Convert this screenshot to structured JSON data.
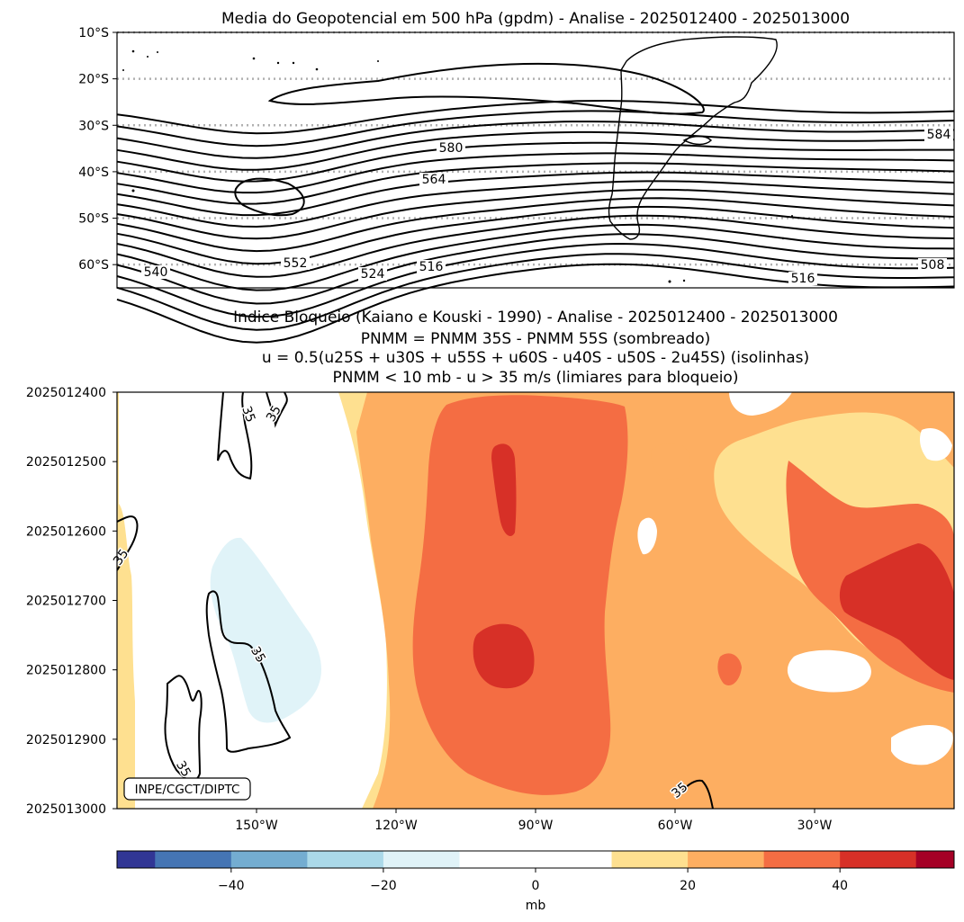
{
  "chart_data": [
    {
      "type": "contour",
      "title": "Media do Geopotencial em 500 hPa (gpdm) - Analise - 2025012400 - 2025013000",
      "y_tick_labels": [
        "10°S",
        "20°S",
        "30°S",
        "40°S",
        "50°S",
        "60°S"
      ],
      "y_ticks": [
        -10,
        -20,
        -30,
        -40,
        -50,
        -60
      ],
      "ylim": [
        -65,
        -10
      ],
      "xlim": [
        -180,
        0
      ],
      "contour_labels": [
        "580",
        "584",
        "564",
        "552",
        "540",
        "524",
        "516",
        "516",
        "508"
      ],
      "contour_values": [
        508,
        516,
        524,
        532,
        540,
        548,
        552,
        556,
        560,
        564,
        568,
        572,
        576,
        580,
        584,
        588
      ],
      "grid": "dotted latitude lines"
    },
    {
      "type": "heatmap",
      "title_lines": [
        "Indice Bloqueio (Kaiano e Kouski - 1990) - Analise - 2025012400 - 2025013000",
        "PNMM = PNMM 35S - PNMM 55S (sombreado)",
        "u = 0.5(u25S + u30S + u55S + u60S - u40S - u50S - 2u45S) (isolinhas)",
        "PNMM < 10 mb - u > 35 m/s (limiares para bloqueio)"
      ],
      "y_tick_labels": [
        "2025012400",
        "2025012500",
        "2025012600",
        "2025012700",
        "2025012800",
        "2025012900",
        "2025013000"
      ],
      "x_tick_labels": [
        "150°W",
        "120°W",
        "90°W",
        "60°W",
        "30°W"
      ],
      "x_ticks": [
        -150,
        -120,
        -90,
        -60,
        -30
      ],
      "xlim": [
        -180,
        0
      ],
      "contour_level": 35,
      "contour_labels": [
        "35",
        "35",
        "35",
        "35",
        "35",
        "35"
      ],
      "watermark": "INPE/CGCT/DIPTC",
      "levels": [
        -60,
        -50,
        -40,
        -30,
        -20,
        -10,
        0,
        10,
        20,
        30,
        40,
        50,
        60
      ],
      "region_values_mb": [
        {
          "area": "west band",
          "value": 15
        },
        {
          "area": "pacific interior",
          "value": 5
        },
        {
          "area": "light-blue tongue",
          "value": -15
        },
        {
          "area": "central core",
          "value": 35
        },
        {
          "area": "max near 90W",
          "value": 45
        },
        {
          "area": "east core",
          "value": 45
        }
      ]
    }
  ],
  "colorbar": {
    "label": "mb",
    "tick_labels": [
      "−40",
      "−20",
      "0",
      "20",
      "40"
    ],
    "ticks": [
      -40,
      -20,
      0,
      20,
      40
    ],
    "range": [
      -55,
      55
    ],
    "bins": [
      -55,
      -50,
      -40,
      -30,
      -20,
      -10,
      10,
      20,
      30,
      40,
      50,
      55
    ],
    "colors": [
      "#313695",
      "#4575b4",
      "#74add1",
      "#abd9e9",
      "#e0f3f8",
      "#ffffff",
      "#fee090",
      "#fdae61",
      "#f46d43",
      "#d73027",
      "#a50026"
    ]
  }
}
